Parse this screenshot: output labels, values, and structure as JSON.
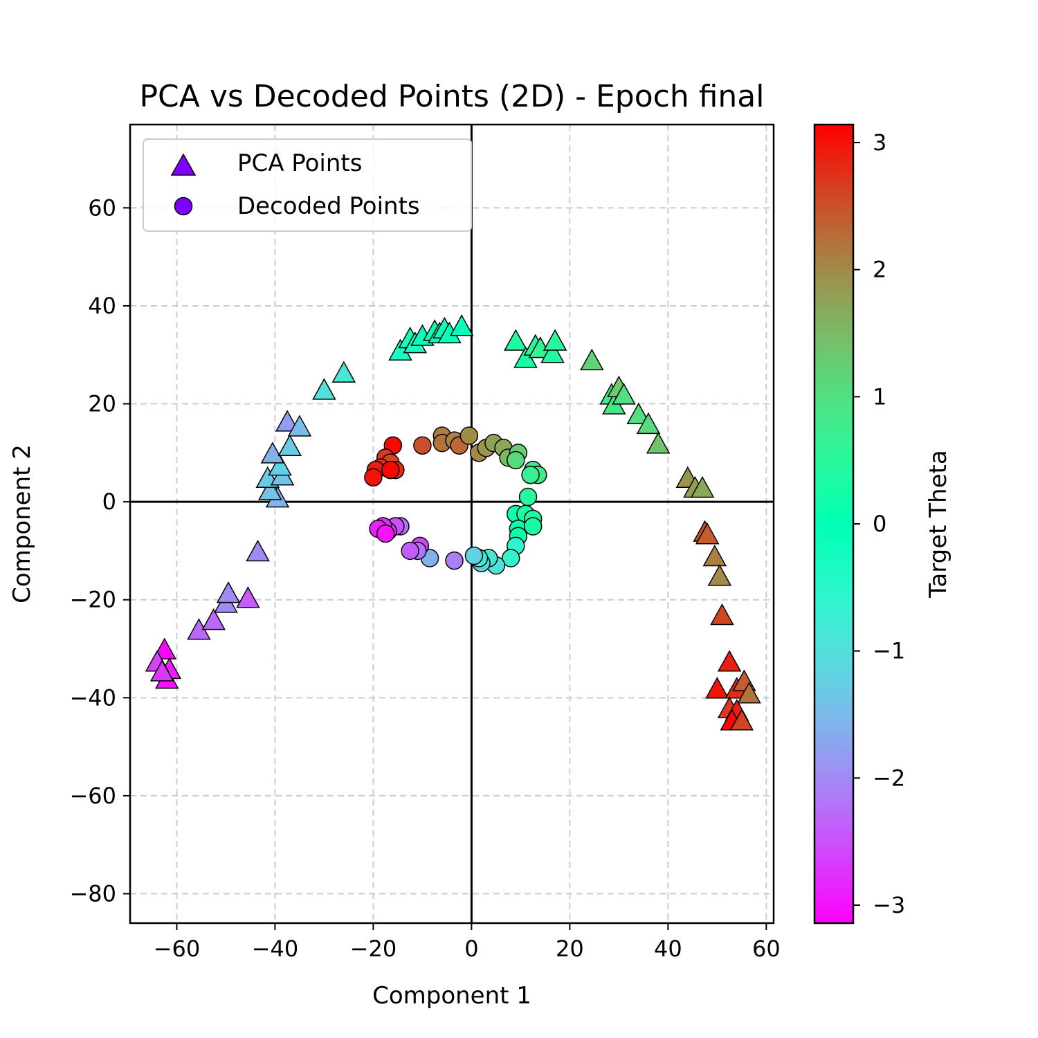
{
  "chart_data": {
    "type": "scatter",
    "title": "PCA vs Decoded Points (2D) - Epoch final",
    "xlabel": "Component 1",
    "ylabel": "Component 2",
    "xlim": [
      -69.5,
      61.5
    ],
    "ylim": [
      -86,
      77
    ],
    "xticks": [
      -60,
      -40,
      -20,
      0,
      20,
      40,
      60
    ],
    "yticks": [
      -80,
      -60,
      -40,
      -20,
      0,
      20,
      40,
      60
    ],
    "xtick_labels": [
      "−60",
      "−40",
      "−20",
      "0",
      "20",
      "40",
      "60"
    ],
    "ytick_labels": [
      "−80",
      "−60",
      "−40",
      "−20",
      "0",
      "20",
      "40",
      "60"
    ],
    "grid": true,
    "reference_lines": {
      "x": 0,
      "y": 0
    },
    "legend": {
      "placement": "top-left",
      "entries": [
        {
          "label": "PCA Points",
          "marker": "triangle",
          "color": "#7f00ff"
        },
        {
          "label": "Decoded Points",
          "marker": "circle",
          "color": "#7f00ff"
        }
      ]
    },
    "colorbar": {
      "label": "Target Theta",
      "colormap": "rainbow",
      "range": [
        -3.1416,
        3.1416
      ],
      "ticks": [
        -3,
        -2,
        -1,
        0,
        1,
        2,
        3
      ],
      "tick_labels": [
        "−3",
        "−2",
        "−1",
        "0",
        "1",
        "2",
        "3"
      ]
    },
    "series": [
      {
        "name": "PCA Points",
        "marker": "triangle",
        "points": [
          {
            "x": -62.5,
            "y": -30.5,
            "theta": -3.1
          },
          {
            "x": -62.0,
            "y": -36.5,
            "theta": -3.0
          },
          {
            "x": -61.5,
            "y": -34.5,
            "theta": -2.9
          },
          {
            "x": -64.0,
            "y": -33.0,
            "theta": -2.6
          },
          {
            "x": -63.0,
            "y": -35.0,
            "theta": -2.7
          },
          {
            "x": -55.5,
            "y": -26.5,
            "theta": -2.3
          },
          {
            "x": -52.5,
            "y": -24.5,
            "theta": -2.3
          },
          {
            "x": -50.0,
            "y": -21.0,
            "theta": -2.0
          },
          {
            "x": -49.5,
            "y": -19.0,
            "theta": -2.0
          },
          {
            "x": -45.5,
            "y": -20.0,
            "theta": -2.4
          },
          {
            "x": -43.5,
            "y": -10.5,
            "theta": -2.0
          },
          {
            "x": -39.5,
            "y": 0.5,
            "theta": -1.6
          },
          {
            "x": -41.0,
            "y": 2.0,
            "theta": -1.4
          },
          {
            "x": -41.5,
            "y": 4.5,
            "theta": -1.3
          },
          {
            "x": -38.5,
            "y": 5.0,
            "theta": -1.4
          },
          {
            "x": -39.0,
            "y": 7.0,
            "theta": -1.2
          },
          {
            "x": -40.5,
            "y": 9.5,
            "theta": -1.6
          },
          {
            "x": -37.0,
            "y": 11.0,
            "theta": -1.3
          },
          {
            "x": -37.5,
            "y": 16.0,
            "theta": -1.8
          },
          {
            "x": -35.0,
            "y": 15.0,
            "theta": -1.5
          },
          {
            "x": -30.0,
            "y": 22.5,
            "theta": -1.0
          },
          {
            "x": -26.0,
            "y": 26.0,
            "theta": -0.9
          },
          {
            "x": -14.5,
            "y": 30.5,
            "theta": -0.3
          },
          {
            "x": -12.5,
            "y": 33.0,
            "theta": -0.2
          },
          {
            "x": -11.5,
            "y": 32.0,
            "theta": -0.3
          },
          {
            "x": -10.0,
            "y": 33.5,
            "theta": -0.1
          },
          {
            "x": -7.5,
            "y": 34.5,
            "theta": -0.1
          },
          {
            "x": -6.5,
            "y": 34.0,
            "theta": 0.0
          },
          {
            "x": -5.5,
            "y": 35.0,
            "theta": -0.2
          },
          {
            "x": -4.5,
            "y": 34.0,
            "theta": -0.1
          },
          {
            "x": -2.0,
            "y": 35.5,
            "theta": -0.1
          },
          {
            "x": 9.0,
            "y": 32.5,
            "theta": 0.4
          },
          {
            "x": 11.0,
            "y": 29.0,
            "theta": 0.3
          },
          {
            "x": 13.0,
            "y": 31.5,
            "theta": 0.5
          },
          {
            "x": 14.0,
            "y": 31.0,
            "theta": 0.6
          },
          {
            "x": 16.5,
            "y": 30.0,
            "theta": 0.4
          },
          {
            "x": 17.0,
            "y": 32.5,
            "theta": 0.5
          },
          {
            "x": 24.5,
            "y": 28.5,
            "theta": 1.2
          },
          {
            "x": 28.5,
            "y": 21.5,
            "theta": 0.9
          },
          {
            "x": 29.0,
            "y": 19.5,
            "theta": 0.9
          },
          {
            "x": 30.0,
            "y": 23.0,
            "theta": 1.3
          },
          {
            "x": 31.0,
            "y": 21.5,
            "theta": 1.0
          },
          {
            "x": 34.0,
            "y": 17.5,
            "theta": 1.0
          },
          {
            "x": 36.0,
            "y": 15.5,
            "theta": 1.1
          },
          {
            "x": 38.0,
            "y": 11.5,
            "theta": 1.4
          },
          {
            "x": 44.0,
            "y": 4.5,
            "theta": 1.9
          },
          {
            "x": 45.5,
            "y": 2.5,
            "theta": 1.8
          },
          {
            "x": 47.0,
            "y": 2.5,
            "theta": 1.7
          },
          {
            "x": 47.5,
            "y": -6.5,
            "theta": 2.5
          },
          {
            "x": 48.0,
            "y": -7.0,
            "theta": 2.4
          },
          {
            "x": 49.5,
            "y": -11.5,
            "theta": 2.1
          },
          {
            "x": 50.5,
            "y": -15.5,
            "theta": 2.0
          },
          {
            "x": 51.0,
            "y": -23.5,
            "theta": 2.6
          },
          {
            "x": 52.5,
            "y": -33.0,
            "theta": 2.9
          },
          {
            "x": 50.0,
            "y": -38.5,
            "theta": 3.0
          },
          {
            "x": 54.0,
            "y": -38.5,
            "theta": 2.8
          },
          {
            "x": 55.5,
            "y": -37.0,
            "theta": 2.4
          },
          {
            "x": 56.5,
            "y": -39.5,
            "theta": 2.2
          },
          {
            "x": 52.5,
            "y": -42.5,
            "theta": 2.7
          },
          {
            "x": 54.0,
            "y": -43.0,
            "theta": 2.9
          },
          {
            "x": 53.0,
            "y": -45.0,
            "theta": 3.1
          },
          {
            "x": 55.0,
            "y": -45.0,
            "theta": 2.6
          }
        ]
      },
      {
        "name": "Decoded Points",
        "marker": "circle",
        "points": [
          {
            "x": -16.0,
            "y": 11.5,
            "theta": 3.1
          },
          {
            "x": -17.5,
            "y": 9.0,
            "theta": 2.7
          },
          {
            "x": -16.5,
            "y": 8.0,
            "theta": 2.6
          },
          {
            "x": -18.5,
            "y": 7.0,
            "theta": 2.8
          },
          {
            "x": -19.5,
            "y": 6.5,
            "theta": 2.9
          },
          {
            "x": -15.5,
            "y": 6.5,
            "theta": 2.8
          },
          {
            "x": -16.5,
            "y": 6.5,
            "theta": 3.1
          },
          {
            "x": -20.0,
            "y": 5.0,
            "theta": 3.0
          },
          {
            "x": -10.0,
            "y": 11.5,
            "theta": 2.5
          },
          {
            "x": -6.0,
            "y": 13.5,
            "theta": 2.1
          },
          {
            "x": -6.0,
            "y": 12.0,
            "theta": 2.2
          },
          {
            "x": -3.5,
            "y": 12.5,
            "theta": 2.1
          },
          {
            "x": -2.5,
            "y": 11.5,
            "theta": 2.3
          },
          {
            "x": -0.5,
            "y": 13.5,
            "theta": 2.0
          },
          {
            "x": 1.5,
            "y": 10.0,
            "theta": 2.0
          },
          {
            "x": 3.0,
            "y": 11.0,
            "theta": 1.9
          },
          {
            "x": 4.5,
            "y": 12.0,
            "theta": 1.8
          },
          {
            "x": 6.5,
            "y": 11.0,
            "theta": 1.7
          },
          {
            "x": 7.5,
            "y": 9.0,
            "theta": 1.5
          },
          {
            "x": 9.5,
            "y": 10.0,
            "theta": 1.3
          },
          {
            "x": 9.0,
            "y": 8.5,
            "theta": 1.1
          },
          {
            "x": 12.5,
            "y": 6.5,
            "theta": 0.9
          },
          {
            "x": 13.5,
            "y": 5.5,
            "theta": 0.8
          },
          {
            "x": 12.0,
            "y": 5.5,
            "theta": 0.7
          },
          {
            "x": 11.5,
            "y": 1.0,
            "theta": 0.5
          },
          {
            "x": 9.0,
            "y": -2.5,
            "theta": 0.2
          },
          {
            "x": 11.0,
            "y": -2.5,
            "theta": 0.3
          },
          {
            "x": 12.5,
            "y": -3.5,
            "theta": 0.4
          },
          {
            "x": 9.5,
            "y": -5.5,
            "theta": 0.1
          },
          {
            "x": 12.5,
            "y": -5.0,
            "theta": 0.3
          },
          {
            "x": 9.5,
            "y": -7.0,
            "theta": 0.2
          },
          {
            "x": 9.0,
            "y": -9.0,
            "theta": -0.6
          },
          {
            "x": 8.0,
            "y": -11.5,
            "theta": -0.6
          },
          {
            "x": 5.0,
            "y": -13.0,
            "theta": -1.0
          },
          {
            "x": 3.5,
            "y": -11.5,
            "theta": -0.9
          },
          {
            "x": 2.0,
            "y": -12.5,
            "theta": -1.1
          },
          {
            "x": 1.5,
            "y": -11.5,
            "theta": -0.7
          },
          {
            "x": 0.5,
            "y": -11.0,
            "theta": -1.2
          },
          {
            "x": -3.5,
            "y": -12.0,
            "theta": -2.1
          },
          {
            "x": -8.5,
            "y": -11.5,
            "theta": -1.6
          },
          {
            "x": -10.5,
            "y": -9.0,
            "theta": -2.6
          },
          {
            "x": -11.0,
            "y": -10.0,
            "theta": -2.2
          },
          {
            "x": -12.5,
            "y": -10.0,
            "theta": -2.4
          },
          {
            "x": -14.5,
            "y": -5.0,
            "theta": -2.2
          },
          {
            "x": -15.5,
            "y": -5.0,
            "theta": -2.5
          },
          {
            "x": -17.0,
            "y": -6.0,
            "theta": -2.7
          },
          {
            "x": -18.0,
            "y": -5.0,
            "theta": -2.8
          },
          {
            "x": -19.0,
            "y": -5.5,
            "theta": -2.9
          },
          {
            "x": -17.5,
            "y": -6.5,
            "theta": -3.0
          }
        ]
      }
    ]
  }
}
